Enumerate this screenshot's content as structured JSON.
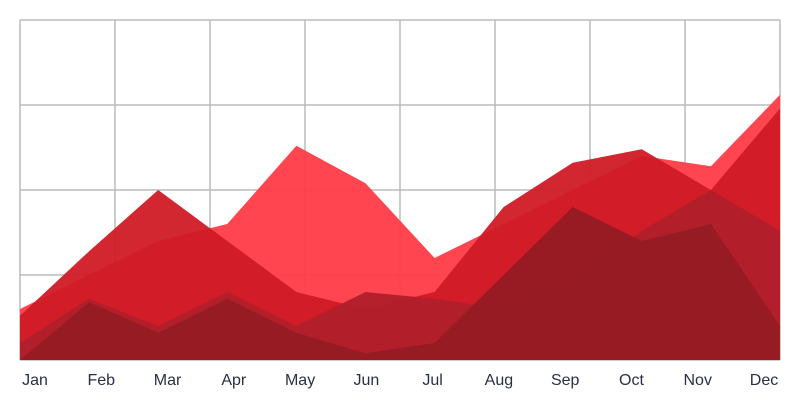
{
  "chart_data": {
    "type": "area",
    "categories": [
      "Jan",
      "Feb",
      "Mar",
      "Apr",
      "May",
      "Jun",
      "Jul",
      "Aug",
      "Sep",
      "Oct",
      "Nov",
      "Dec"
    ],
    "series": [
      {
        "color": "#ff3b47",
        "values": [
          15,
          25,
          35,
          40,
          63,
          52,
          30,
          40,
          50,
          60,
          57,
          78
        ]
      },
      {
        "color": "#d01a26",
        "values": [
          13,
          32,
          50,
          35,
          20,
          15,
          20,
          45,
          58,
          62,
          50,
          74
        ]
      },
      {
        "color": "#b0202a",
        "values": [
          5,
          18,
          10,
          20,
          10,
          20,
          18,
          15,
          22,
          38,
          50,
          38
        ]
      },
      {
        "color": "#951b23",
        "values": [
          0,
          17,
          8,
          18,
          8,
          2,
          5,
          25,
          45,
          35,
          40,
          10
        ]
      }
    ],
    "ylim": [
      0,
      100
    ],
    "yticks": [
      0,
      25,
      50,
      75,
      100
    ],
    "grid": true
  }
}
